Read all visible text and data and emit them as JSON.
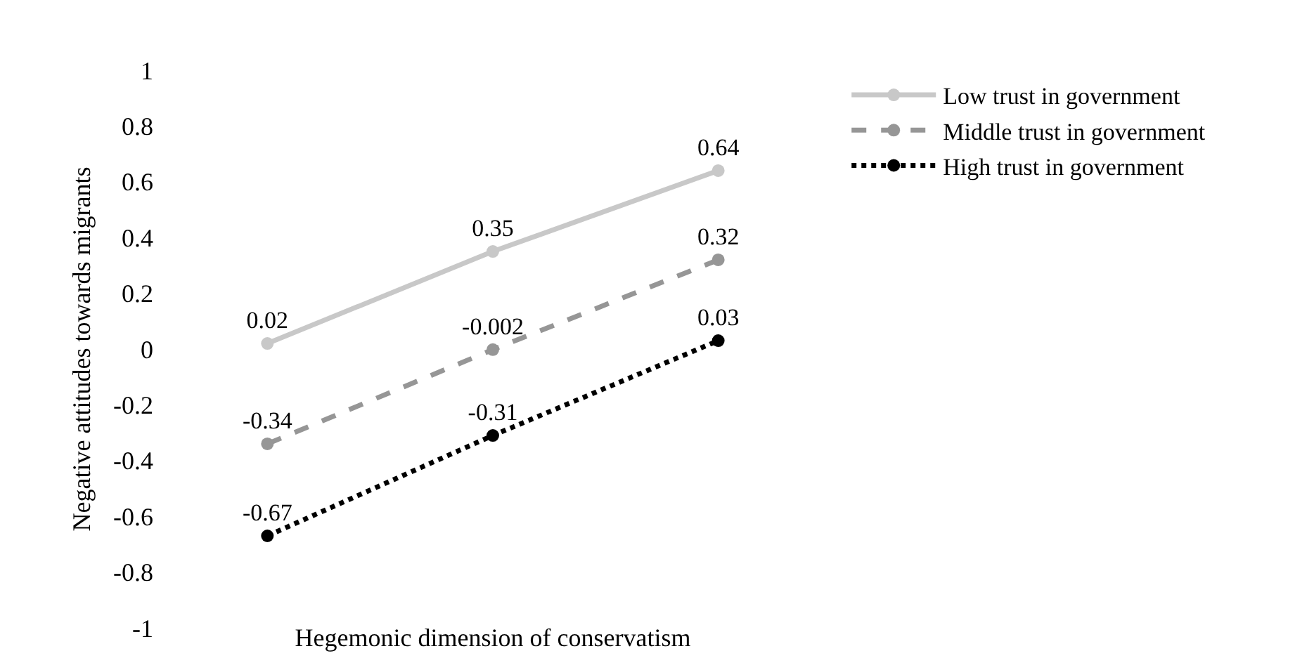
{
  "chart_data": {
    "type": "line",
    "xlabel": "Hegemonic dimension of conservatism",
    "ylabel": "Negative attitudes towards migrants",
    "categories": [
      null,
      null,
      null
    ],
    "series": [
      {
        "name": "Low trust in government",
        "color": "#c8c8c8",
        "line_style": "solid",
        "values": [
          0.02,
          0.35,
          0.64
        ]
      },
      {
        "name": "Middle trust in government",
        "color": "#969696",
        "line_style": "dashed",
        "values": [
          -0.34,
          -0.002,
          0.32
        ]
      },
      {
        "name": "High trust in government",
        "color": "#000000",
        "line_style": "dotted",
        "values": [
          -0.67,
          -0.31,
          0.03
        ]
      }
    ],
    "ylim": [
      -1,
      1
    ],
    "yticks": [
      -1,
      -0.8,
      -0.6,
      -0.4,
      -0.2,
      0,
      0.2,
      0.4,
      0.6,
      0.8,
      1
    ],
    "data_labels": true,
    "marker": "circle",
    "legend": "top right",
    "grid": false
  }
}
